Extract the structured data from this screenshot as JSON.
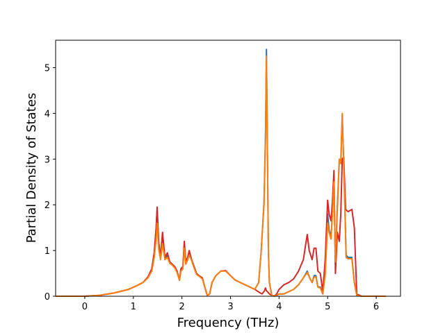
{
  "chart_data": {
    "type": "line",
    "xlabel": "Frequency (THz)",
    "ylabel": "Partial Density of States",
    "xlim": [
      -0.6,
      6.5
    ],
    "ylim": [
      0,
      5.6
    ],
    "xticks": [
      0,
      1,
      2,
      3,
      4,
      5,
      6
    ],
    "yticks": [
      0,
      1,
      2,
      3,
      4,
      5
    ],
    "grid": false,
    "series": [
      {
        "color": "#1f77b4",
        "points": [
          [
            -0.6,
            0
          ],
          [
            0,
            0
          ],
          [
            0.3,
            0.02
          ],
          [
            0.6,
            0.07
          ],
          [
            0.9,
            0.15
          ],
          [
            1.05,
            0.22
          ],
          [
            1.2,
            0.3
          ],
          [
            1.3,
            0.42
          ],
          [
            1.38,
            0.6
          ],
          [
            1.43,
            0.95
          ],
          [
            1.47,
            1.5
          ],
          [
            1.49,
            1.9
          ],
          [
            1.52,
            1.2
          ],
          [
            1.56,
            0.85
          ],
          [
            1.6,
            1.3
          ],
          [
            1.65,
            0.8
          ],
          [
            1.7,
            0.9
          ],
          [
            1.75,
            0.75
          ],
          [
            1.8,
            0.7
          ],
          [
            1.85,
            0.65
          ],
          [
            1.9,
            0.55
          ],
          [
            1.95,
            0.35
          ],
          [
            1.98,
            0.6
          ],
          [
            2.02,
            0.65
          ],
          [
            2.05,
            1.15
          ],
          [
            2.08,
            0.75
          ],
          [
            2.12,
            0.85
          ],
          [
            2.15,
            0.95
          ],
          [
            2.2,
            0.8
          ],
          [
            2.25,
            0.65
          ],
          [
            2.3,
            0.5
          ],
          [
            2.35,
            0.45
          ],
          [
            2.42,
            0.4
          ],
          [
            2.47,
            0.2
          ],
          [
            2.52,
            0.02
          ],
          [
            2.57,
            0.05
          ],
          [
            2.62,
            0.3
          ],
          [
            2.7,
            0.45
          ],
          [
            2.8,
            0.55
          ],
          [
            2.9,
            0.56
          ],
          [
            3.0,
            0.45
          ],
          [
            3.1,
            0.35
          ],
          [
            3.3,
            0.25
          ],
          [
            3.5,
            0.15
          ],
          [
            3.58,
            0.3
          ],
          [
            3.63,
            0.95
          ],
          [
            3.66,
            1.5
          ],
          [
            3.69,
            2.05
          ],
          [
            3.72,
            3.5
          ],
          [
            3.74,
            5.4
          ],
          [
            3.76,
            3.2
          ],
          [
            3.78,
            1.0
          ],
          [
            3.8,
            0.3
          ],
          [
            3.85,
            0.02
          ],
          [
            3.9,
            0
          ],
          [
            3.95,
            0.02
          ],
          [
            4.0,
            0.05
          ],
          [
            4.1,
            0.05
          ],
          [
            4.2,
            0.1
          ],
          [
            4.3,
            0.15
          ],
          [
            4.4,
            0.25
          ],
          [
            4.5,
            0.4
          ],
          [
            4.58,
            0.55
          ],
          [
            4.63,
            0.4
          ],
          [
            4.68,
            0.3
          ],
          [
            4.72,
            0.45
          ],
          [
            4.76,
            0.45
          ],
          [
            4.8,
            0.2
          ],
          [
            4.85,
            0.2
          ],
          [
            4.9,
            0.05
          ],
          [
            4.95,
            0.5
          ],
          [
            5.0,
            1.8
          ],
          [
            5.03,
            1.45
          ],
          [
            5.07,
            1.3
          ],
          [
            5.1,
            1.85
          ],
          [
            5.13,
            2.6
          ],
          [
            5.16,
            0.7
          ],
          [
            5.2,
            2.0
          ],
          [
            5.24,
            2.98
          ],
          [
            5.27,
            2.95
          ],
          [
            5.3,
            3.95
          ],
          [
            5.34,
            2.6
          ],
          [
            5.38,
            0.9
          ],
          [
            5.42,
            0.85
          ],
          [
            5.5,
            0.85
          ],
          [
            5.55,
            0.3
          ],
          [
            5.6,
            0.02
          ],
          [
            5.7,
            0
          ],
          [
            6.2,
            0
          ]
        ]
      },
      {
        "color": "#d62728",
        "points": [
          [
            -0.6,
            0
          ],
          [
            0,
            0
          ],
          [
            0.3,
            0.02
          ],
          [
            0.6,
            0.07
          ],
          [
            0.9,
            0.15
          ],
          [
            1.05,
            0.22
          ],
          [
            1.2,
            0.3
          ],
          [
            1.3,
            0.42
          ],
          [
            1.38,
            0.6
          ],
          [
            1.43,
            0.95
          ],
          [
            1.47,
            1.5
          ],
          [
            1.49,
            1.95
          ],
          [
            1.52,
            1.2
          ],
          [
            1.56,
            0.85
          ],
          [
            1.6,
            1.4
          ],
          [
            1.65,
            0.85
          ],
          [
            1.7,
            0.95
          ],
          [
            1.75,
            0.75
          ],
          [
            1.8,
            0.7
          ],
          [
            1.85,
            0.65
          ],
          [
            1.9,
            0.55
          ],
          [
            1.95,
            0.35
          ],
          [
            1.98,
            0.6
          ],
          [
            2.02,
            0.65
          ],
          [
            2.05,
            1.2
          ],
          [
            2.08,
            0.75
          ],
          [
            2.12,
            0.85
          ],
          [
            2.15,
            1.0
          ],
          [
            2.2,
            0.8
          ],
          [
            2.25,
            0.65
          ],
          [
            2.3,
            0.5
          ],
          [
            2.35,
            0.45
          ],
          [
            2.42,
            0.4
          ],
          [
            2.47,
            0.2
          ],
          [
            2.52,
            0.02
          ],
          [
            2.57,
            0.05
          ],
          [
            2.62,
            0.3
          ],
          [
            2.7,
            0.45
          ],
          [
            2.8,
            0.55
          ],
          [
            2.9,
            0.56
          ],
          [
            3.0,
            0.45
          ],
          [
            3.1,
            0.35
          ],
          [
            3.3,
            0.25
          ],
          [
            3.5,
            0.15
          ],
          [
            3.6,
            0.08
          ],
          [
            3.65,
            0.05
          ],
          [
            3.7,
            0.12
          ],
          [
            3.72,
            0.18
          ],
          [
            3.74,
            0.12
          ],
          [
            3.76,
            0.1
          ],
          [
            3.8,
            0.05
          ],
          [
            3.85,
            0.02
          ],
          [
            3.9,
            0
          ],
          [
            3.95,
            0.05
          ],
          [
            4.0,
            0.15
          ],
          [
            4.1,
            0.25
          ],
          [
            4.2,
            0.3
          ],
          [
            4.3,
            0.38
          ],
          [
            4.4,
            0.55
          ],
          [
            4.5,
            0.8
          ],
          [
            4.55,
            1.15
          ],
          [
            4.58,
            1.35
          ],
          [
            4.62,
            1.0
          ],
          [
            4.68,
            0.8
          ],
          [
            4.72,
            1.05
          ],
          [
            4.76,
            1.05
          ],
          [
            4.8,
            0.55
          ],
          [
            4.85,
            0.5
          ],
          [
            4.9,
            0.1
          ],
          [
            4.95,
            0.8
          ],
          [
            5.0,
            2.1
          ],
          [
            5.03,
            1.8
          ],
          [
            5.07,
            1.65
          ],
          [
            5.1,
            2.1
          ],
          [
            5.13,
            2.75
          ],
          [
            5.16,
            0.5
          ],
          [
            5.2,
            1.4
          ],
          [
            5.24,
            1.2
          ],
          [
            5.27,
            1.8
          ],
          [
            5.3,
            3.0
          ],
          [
            5.33,
            3.05
          ],
          [
            5.37,
            1.9
          ],
          [
            5.42,
            1.85
          ],
          [
            5.5,
            1.9
          ],
          [
            5.55,
            1.5
          ],
          [
            5.6,
            0.05
          ],
          [
            5.7,
            0
          ],
          [
            6.2,
            0
          ]
        ]
      },
      {
        "color": "#ff7f0e",
        "points": [
          [
            -0.6,
            0
          ],
          [
            0,
            0
          ],
          [
            0.3,
            0.02
          ],
          [
            0.6,
            0.07
          ],
          [
            0.9,
            0.15
          ],
          [
            1.05,
            0.22
          ],
          [
            1.2,
            0.3
          ],
          [
            1.3,
            0.4
          ],
          [
            1.38,
            0.55
          ],
          [
            1.43,
            0.85
          ],
          [
            1.47,
            1.25
          ],
          [
            1.49,
            1.6
          ],
          [
            1.52,
            1.05
          ],
          [
            1.56,
            0.8
          ],
          [
            1.6,
            1.15
          ],
          [
            1.65,
            0.8
          ],
          [
            1.7,
            0.85
          ],
          [
            1.75,
            0.72
          ],
          [
            1.8,
            0.68
          ],
          [
            1.85,
            0.62
          ],
          [
            1.9,
            0.52
          ],
          [
            1.95,
            0.35
          ],
          [
            1.98,
            0.55
          ],
          [
            2.02,
            0.6
          ],
          [
            2.05,
            1.05
          ],
          [
            2.08,
            0.7
          ],
          [
            2.12,
            0.8
          ],
          [
            2.15,
            0.9
          ],
          [
            2.2,
            0.78
          ],
          [
            2.25,
            0.62
          ],
          [
            2.3,
            0.48
          ],
          [
            2.35,
            0.44
          ],
          [
            2.42,
            0.38
          ],
          [
            2.47,
            0.2
          ],
          [
            2.52,
            0.02
          ],
          [
            2.57,
            0.05
          ],
          [
            2.62,
            0.3
          ],
          [
            2.7,
            0.45
          ],
          [
            2.8,
            0.55
          ],
          [
            2.9,
            0.55
          ],
          [
            3.0,
            0.45
          ],
          [
            3.1,
            0.35
          ],
          [
            3.3,
            0.25
          ],
          [
            3.5,
            0.15
          ],
          [
            3.58,
            0.3
          ],
          [
            3.63,
            0.95
          ],
          [
            3.66,
            1.5
          ],
          [
            3.69,
            2.0
          ],
          [
            3.72,
            3.4
          ],
          [
            3.74,
            5.25
          ],
          [
            3.76,
            3.1
          ],
          [
            3.78,
            1.0
          ],
          [
            3.8,
            0.3
          ],
          [
            3.85,
            0.02
          ],
          [
            3.9,
            0
          ],
          [
            3.95,
            0.02
          ],
          [
            4.0,
            0.05
          ],
          [
            4.1,
            0.05
          ],
          [
            4.2,
            0.1
          ],
          [
            4.3,
            0.15
          ],
          [
            4.4,
            0.25
          ],
          [
            4.5,
            0.4
          ],
          [
            4.58,
            0.52
          ],
          [
            4.63,
            0.4
          ],
          [
            4.68,
            0.3
          ],
          [
            4.72,
            0.42
          ],
          [
            4.76,
            0.42
          ],
          [
            4.8,
            0.2
          ],
          [
            4.85,
            0.18
          ],
          [
            4.9,
            0.05
          ],
          [
            4.95,
            0.45
          ],
          [
            5.0,
            1.6
          ],
          [
            5.03,
            1.4
          ],
          [
            5.07,
            1.25
          ],
          [
            5.1,
            1.8
          ],
          [
            5.13,
            2.5
          ],
          [
            5.16,
            0.75
          ],
          [
            5.2,
            1.9
          ],
          [
            5.24,
            3.0
          ],
          [
            5.27,
            2.9
          ],
          [
            5.3,
            4.0
          ],
          [
            5.34,
            2.5
          ],
          [
            5.38,
            0.85
          ],
          [
            5.42,
            0.82
          ],
          [
            5.5,
            0.82
          ],
          [
            5.55,
            0.3
          ],
          [
            5.6,
            0.02
          ],
          [
            5.7,
            0
          ],
          [
            6.2,
            0
          ]
        ]
      }
    ]
  }
}
